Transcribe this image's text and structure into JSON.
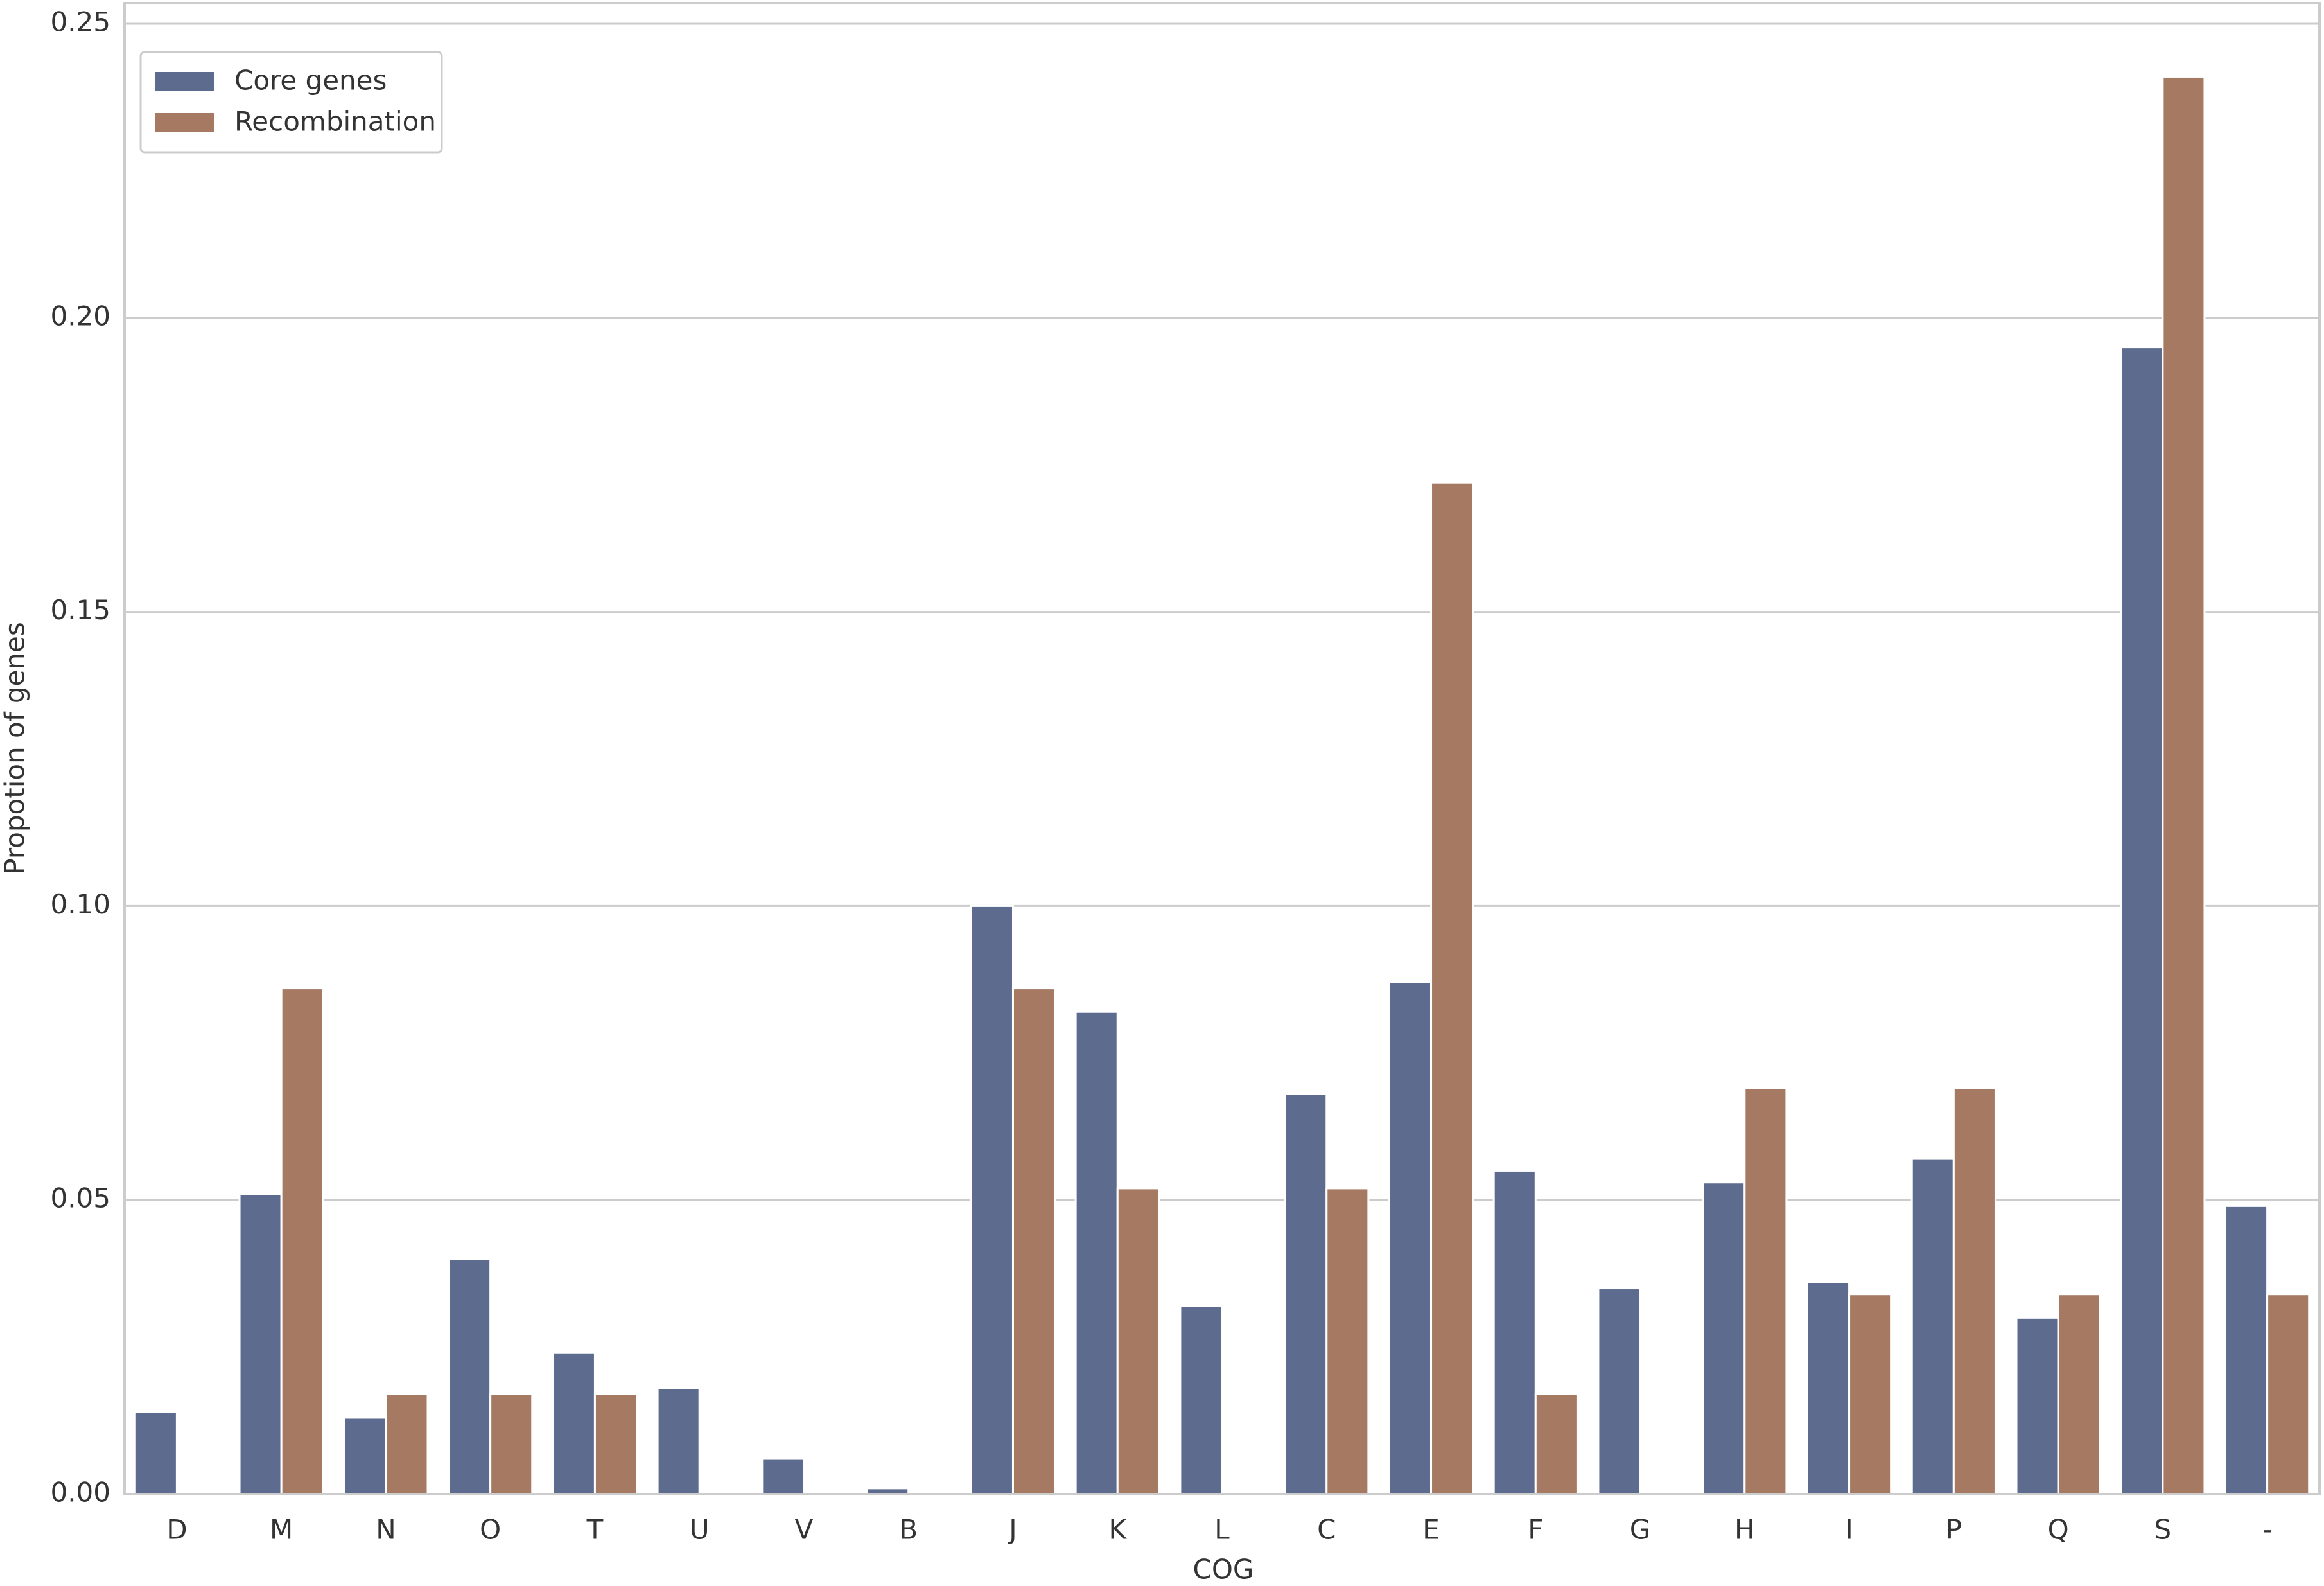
{
  "chart_data": {
    "type": "bar",
    "xlabel": "COG",
    "ylabel": "Propotion of genes",
    "categories": [
      "D",
      "M",
      "N",
      "O",
      "T",
      "U",
      "V",
      "B",
      "J",
      "K",
      "L",
      "C",
      "E",
      "F",
      "G",
      "H",
      "I",
      "P",
      "Q",
      "S",
      "-"
    ],
    "series": [
      {
        "name": "Core genes",
        "color": "#5d6b8f",
        "values": [
          0.014,
          0.051,
          0.013,
          0.04,
          0.024,
          0.018,
          0.006,
          0.001,
          0.1,
          0.082,
          0.032,
          0.068,
          0.087,
          0.055,
          0.035,
          0.053,
          0.036,
          0.057,
          0.03,
          0.195,
          0.049
        ]
      },
      {
        "name": "Recombination",
        "color": "#a67a62",
        "values": [
          0,
          0.086,
          0.017,
          0.017,
          0.017,
          0,
          0,
          0,
          0.086,
          0.052,
          0,
          0.052,
          0.172,
          0.017,
          0,
          0.069,
          0.034,
          0.069,
          0.034,
          0.241,
          0.034
        ]
      }
    ],
    "ylim": [
      0,
      0.2535
    ],
    "yticks": [
      {
        "value": 0,
        "label": "0.00"
      },
      0.05,
      {
        "value": 0.1,
        "label": "0.10"
      },
      0.15,
      {
        "value": 0.2,
        "label": "0.20"
      },
      0.25
    ],
    "grid": true,
    "legend": "upper left"
  }
}
